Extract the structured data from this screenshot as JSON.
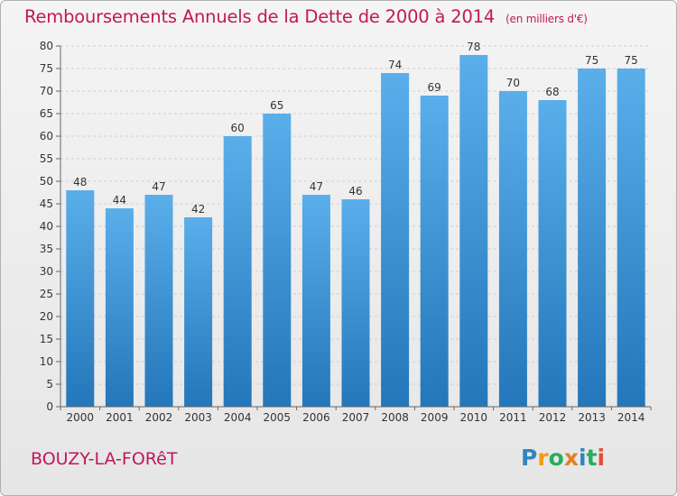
{
  "title": "Remboursements Annuels de la Dette de 2000 à 2014",
  "unit": "(en milliers d'€)",
  "place": "BOUZY-LA-FORêT",
  "logo_text": "Proxiti",
  "colors": {
    "accent": "#c2185b",
    "bar_light": "#5aaeea",
    "bar_dark": "#2377ba"
  },
  "chart_data": {
    "type": "bar",
    "title": "Remboursements Annuels de la Dette de 2000 à 2014",
    "xlabel": "",
    "ylabel": "",
    "categories": [
      "2000",
      "2001",
      "2002",
      "2003",
      "2004",
      "2005",
      "2006",
      "2007",
      "2008",
      "2009",
      "2010",
      "2011",
      "2012",
      "2013",
      "2014"
    ],
    "values": [
      48,
      44,
      47,
      42,
      60,
      65,
      47,
      46,
      74,
      69,
      78,
      70,
      68,
      75,
      75
    ],
    "ylim": [
      0,
      80
    ],
    "yticks": [
      0,
      5,
      10,
      15,
      20,
      25,
      30,
      35,
      40,
      45,
      50,
      55,
      60,
      65,
      70,
      75,
      80
    ],
    "grid": true
  }
}
